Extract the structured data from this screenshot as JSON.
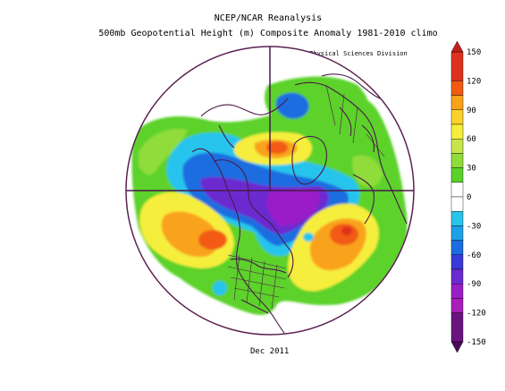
{
  "header": {
    "title_line1": "NCEP/NCAR Reanalysis",
    "title_line2": "500mb Geopotential Height (m) Composite Anomaly 1981-2010 climo",
    "credit": "NOAA/ESRL Physical Sciences Division"
  },
  "footer": {
    "date": "Dec 2011"
  },
  "colorbar": {
    "labels": [
      "150",
      "120",
      "90",
      "60",
      "30",
      "0",
      "-30",
      "-60",
      "-90",
      "-120",
      "-150"
    ],
    "bins": [
      {
        "from": 120,
        "to": 150,
        "color": "#e0301e"
      },
      {
        "from": 105,
        "to": 120,
        "color": "#f25a14"
      },
      {
        "from": 90,
        "to": 105,
        "color": "#f9a21a"
      },
      {
        "from": 75,
        "to": 90,
        "color": "#fbd12a"
      },
      {
        "from": 60,
        "to": 75,
        "color": "#f6ee3c"
      },
      {
        "from": 45,
        "to": 60,
        "color": "#c6e64a"
      },
      {
        "from": 30,
        "to": 45,
        "color": "#8fdc3a"
      },
      {
        "from": 15,
        "to": 30,
        "color": "#5bd22a"
      },
      {
        "from": 0,
        "to": 15,
        "color": "#ffffff"
      },
      {
        "from": -15,
        "to": 0,
        "color": "#ffffff"
      },
      {
        "from": -30,
        "to": -15,
        "color": "#28c4ec"
      },
      {
        "from": -45,
        "to": -30,
        "color": "#1ea0e8"
      },
      {
        "from": -60,
        "to": -45,
        "color": "#1a6de0"
      },
      {
        "from": -75,
        "to": -60,
        "color": "#3a3ad8"
      },
      {
        "from": -90,
        "to": -75,
        "color": "#6a2ad0"
      },
      {
        "from": -105,
        "to": -90,
        "color": "#9a1ec8"
      },
      {
        "from": -120,
        "to": -105,
        "color": "#a81eb8"
      },
      {
        "from": -150,
        "to": -120,
        "color": "#6a1480"
      }
    ]
  },
  "map": {
    "projection": "north-polar-stereographic",
    "colors": {
      "land_outline": "#4a1a48",
      "rim": "#5a2050"
    }
  }
}
